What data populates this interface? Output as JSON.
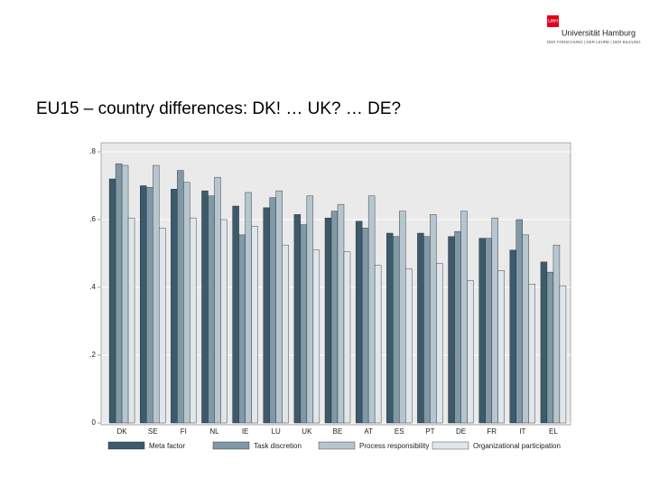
{
  "title": "EU15 – country differences: DK! … UK? … DE?",
  "logo": {
    "mark": "UHH",
    "name": "Universität Hamburg",
    "tagline": "DER FORSCHUNG | DER LEHRE | DER BILDUNG"
  },
  "chart_data": {
    "type": "bar",
    "categories": [
      "DK",
      "SE",
      "FI",
      "NL",
      "IE",
      "LU",
      "UK",
      "BE",
      "AT",
      "ES",
      "PT",
      "DE",
      "FR",
      "IT",
      "EL"
    ],
    "series": [
      {
        "name": "Meta factor",
        "color": "#3d5a6c",
        "values": [
          0.72,
          0.7,
          0.69,
          0.685,
          0.64,
          0.635,
          0.615,
          0.605,
          0.595,
          0.56,
          0.56,
          0.55,
          0.545,
          0.51,
          0.475
        ]
      },
      {
        "name": "Task discretion",
        "color": "#8099a7",
        "values": [
          0.765,
          0.695,
          0.745,
          0.67,
          0.555,
          0.665,
          0.585,
          0.625,
          0.575,
          0.55,
          0.55,
          0.565,
          0.545,
          0.6,
          0.445
        ]
      },
      {
        "name": "Process responsibility",
        "color": "#b5c6cf",
        "values": [
          0.76,
          0.76,
          0.71,
          0.725,
          0.68,
          0.685,
          0.67,
          0.645,
          0.67,
          0.625,
          0.615,
          0.625,
          0.605,
          0.555,
          0.525
        ]
      },
      {
        "name": "Organizational participation",
        "color": "#dfe7ec",
        "values": [
          0.605,
          0.575,
          0.605,
          0.6,
          0.58,
          0.525,
          0.51,
          0.505,
          0.465,
          0.455,
          0.47,
          0.42,
          0.45,
          0.41,
          0.405
        ]
      }
    ],
    "ylim": [
      0,
      0.8
    ],
    "yticks": [
      0,
      {
        "value": 0.2,
        "label": ".2"
      },
      {
        "value": 0.4,
        "label": ".4"
      },
      {
        "value": 0.6,
        "label": ".6"
      },
      {
        "value": 0.8,
        "label": ".8"
      }
    ],
    "grid": true
  }
}
